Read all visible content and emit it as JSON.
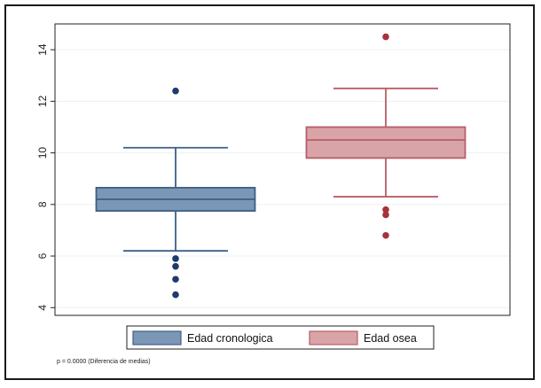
{
  "chart_data": {
    "type": "box",
    "title": "",
    "xlabel": "",
    "ylabel": "",
    "ylim": [
      3.7,
      15.0
    ],
    "yticks": [
      4,
      6,
      8,
      10,
      12,
      14
    ],
    "grid": true,
    "legend_position": "bottom",
    "series": [
      {
        "name": "Edad cronologica",
        "color": "#7b97b5",
        "stroke": "#3d5f86",
        "outlier_color": "#1f3a6b",
        "whisker_low": 6.2,
        "q1": 7.75,
        "median": 8.2,
        "q3": 8.65,
        "whisker_high": 10.2,
        "outliers": [
          12.4,
          5.9,
          5.6,
          5.1,
          4.5
        ]
      },
      {
        "name": "Edad osea",
        "color": "#d9a4a8",
        "stroke": "#b75e66",
        "outlier_color": "#a8323c",
        "whisker_low": 8.3,
        "q1": 9.8,
        "median": 10.5,
        "q3": 11.0,
        "whisker_high": 12.5,
        "outliers": [
          14.5,
          7.8,
          7.6,
          6.8
        ]
      }
    ],
    "annotation": "p = 0.0000 (Diferencia de medias)"
  }
}
